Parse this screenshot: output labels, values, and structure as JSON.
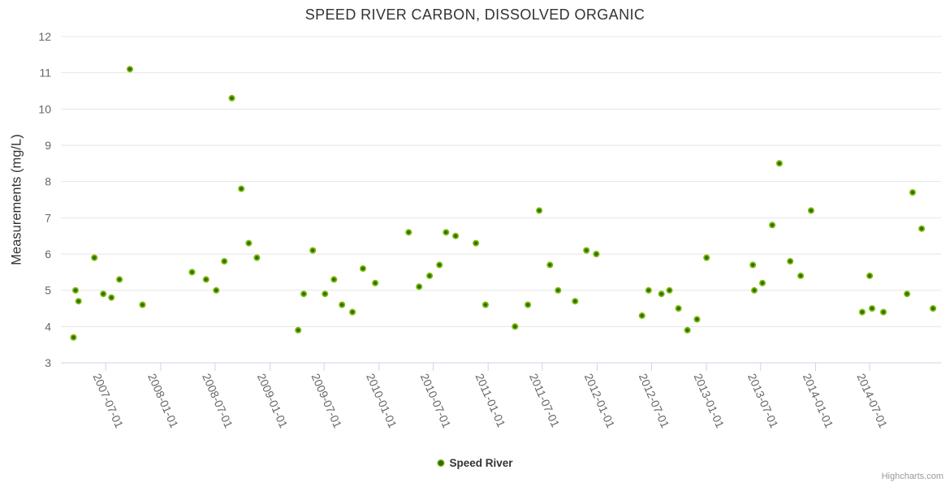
{
  "title": "SPEED RIVER CARBON, DISSOLVED ORGANIC",
  "legend": {
    "items": [
      {
        "label": "Speed River",
        "color": "#74b307"
      }
    ]
  },
  "credits": "Highcharts.com",
  "colors": {
    "series_green": "#74b307",
    "point_center_green": "#2f6a04",
    "grid_line": "#e6e6e6",
    "axis_line": "#ccd6eb",
    "title_text": "#333333",
    "axis_label_text": "#666666",
    "credits_text": "#999999"
  },
  "chart_data": {
    "type": "scatter",
    "title": "SPEED RIVER CARBON, DISSOLVED ORGANIC",
    "xlabel": "",
    "ylabel": "Measurements (mg/L)",
    "ylim": [
      3,
      12
    ],
    "y_tick_interval": 1,
    "y_tick_labels": [
      "3",
      "4",
      "5",
      "6",
      "7",
      "8",
      "9",
      "10",
      "11",
      "12"
    ],
    "xlim": [
      "2007-02-01",
      "2015-02-25"
    ],
    "x_tick_labels": [
      "2007-07-01",
      "2008-01-01",
      "2008-07-01",
      "2009-01-01",
      "2009-07-01",
      "2010-01-01",
      "2010-07-01",
      "2011-01-01",
      "2011-07-01",
      "2012-01-01",
      "2012-07-01",
      "2013-01-01",
      "2013-07-01",
      "2014-01-01",
      "2014-07-01"
    ],
    "grid": true,
    "legend_position": "bottom",
    "series": [
      {
        "name": "Speed River",
        "color": "#74b307",
        "data": [
          {
            "x": "2007-03-15",
            "y": 3.7
          },
          {
            "x": "2007-03-22",
            "y": 5.0
          },
          {
            "x": "2007-04-01",
            "y": 4.7
          },
          {
            "x": "2007-05-24",
            "y": 5.9
          },
          {
            "x": "2007-06-23",
            "y": 4.9
          },
          {
            "x": "2007-07-20",
            "y": 4.8
          },
          {
            "x": "2007-08-16",
            "y": 5.3
          },
          {
            "x": "2007-09-20",
            "y": 11.1
          },
          {
            "x": "2007-11-01",
            "y": 4.6
          },
          {
            "x": "2008-04-15",
            "y": 5.5
          },
          {
            "x": "2008-06-01",
            "y": 5.3
          },
          {
            "x": "2008-07-05",
            "y": 5.0
          },
          {
            "x": "2008-08-01",
            "y": 5.8
          },
          {
            "x": "2008-08-26",
            "y": 10.3
          },
          {
            "x": "2008-09-27",
            "y": 7.8
          },
          {
            "x": "2008-10-22",
            "y": 6.3
          },
          {
            "x": "2008-11-18",
            "y": 5.9
          },
          {
            "x": "2009-04-05",
            "y": 3.9
          },
          {
            "x": "2009-04-24",
            "y": 4.9
          },
          {
            "x": "2009-05-24",
            "y": 6.1
          },
          {
            "x": "2009-07-04",
            "y": 4.9
          },
          {
            "x": "2009-08-03",
            "y": 5.3
          },
          {
            "x": "2009-08-30",
            "y": 4.6
          },
          {
            "x": "2009-10-04",
            "y": 4.4
          },
          {
            "x": "2009-11-08",
            "y": 5.6
          },
          {
            "x": "2009-12-19",
            "y": 5.2
          },
          {
            "x": "2010-04-10",
            "y": 6.6
          },
          {
            "x": "2010-05-15",
            "y": 5.1
          },
          {
            "x": "2010-06-19",
            "y": 5.4
          },
          {
            "x": "2010-07-22",
            "y": 5.7
          },
          {
            "x": "2010-08-13",
            "y": 6.6
          },
          {
            "x": "2010-09-14",
            "y": 6.5
          },
          {
            "x": "2010-11-21",
            "y": 6.3
          },
          {
            "x": "2010-12-23",
            "y": 4.6
          },
          {
            "x": "2011-04-01",
            "y": 4.0
          },
          {
            "x": "2011-05-14",
            "y": 4.6
          },
          {
            "x": "2011-06-21",
            "y": 7.2
          },
          {
            "x": "2011-07-27",
            "y": 5.7
          },
          {
            "x": "2011-08-23",
            "y": 5.0
          },
          {
            "x": "2011-10-19",
            "y": 4.7
          },
          {
            "x": "2011-11-26",
            "y": 6.1
          },
          {
            "x": "2011-12-29",
            "y": 6.0
          },
          {
            "x": "2012-05-30",
            "y": 4.3
          },
          {
            "x": "2012-06-21",
            "y": 5.0
          },
          {
            "x": "2012-08-03",
            "y": 4.9
          },
          {
            "x": "2012-08-30",
            "y": 5.0
          },
          {
            "x": "2012-09-29",
            "y": 4.5
          },
          {
            "x": "2012-10-29",
            "y": 3.9
          },
          {
            "x": "2012-11-30",
            "y": 4.2
          },
          {
            "x": "2013-01-01",
            "y": 5.9
          },
          {
            "x": "2013-06-05",
            "y": 5.7
          },
          {
            "x": "2013-06-10",
            "y": 5.0
          },
          {
            "x": "2013-07-07",
            "y": 5.2
          },
          {
            "x": "2013-08-09",
            "y": 6.8
          },
          {
            "x": "2013-09-02",
            "y": 8.5
          },
          {
            "x": "2013-10-08",
            "y": 5.8
          },
          {
            "x": "2013-11-12",
            "y": 5.4
          },
          {
            "x": "2013-12-17",
            "y": 7.2
          },
          {
            "x": "2014-06-06",
            "y": 4.4
          },
          {
            "x": "2014-07-01",
            "y": 5.4
          },
          {
            "x": "2014-07-09",
            "y": 4.5
          },
          {
            "x": "2014-08-16",
            "y": 4.4
          },
          {
            "x": "2014-11-03",
            "y": 4.9
          },
          {
            "x": "2014-11-22",
            "y": 7.7
          },
          {
            "x": "2014-12-22",
            "y": 6.7
          },
          {
            "x": "2015-01-29",
            "y": 4.5
          }
        ]
      }
    ]
  }
}
